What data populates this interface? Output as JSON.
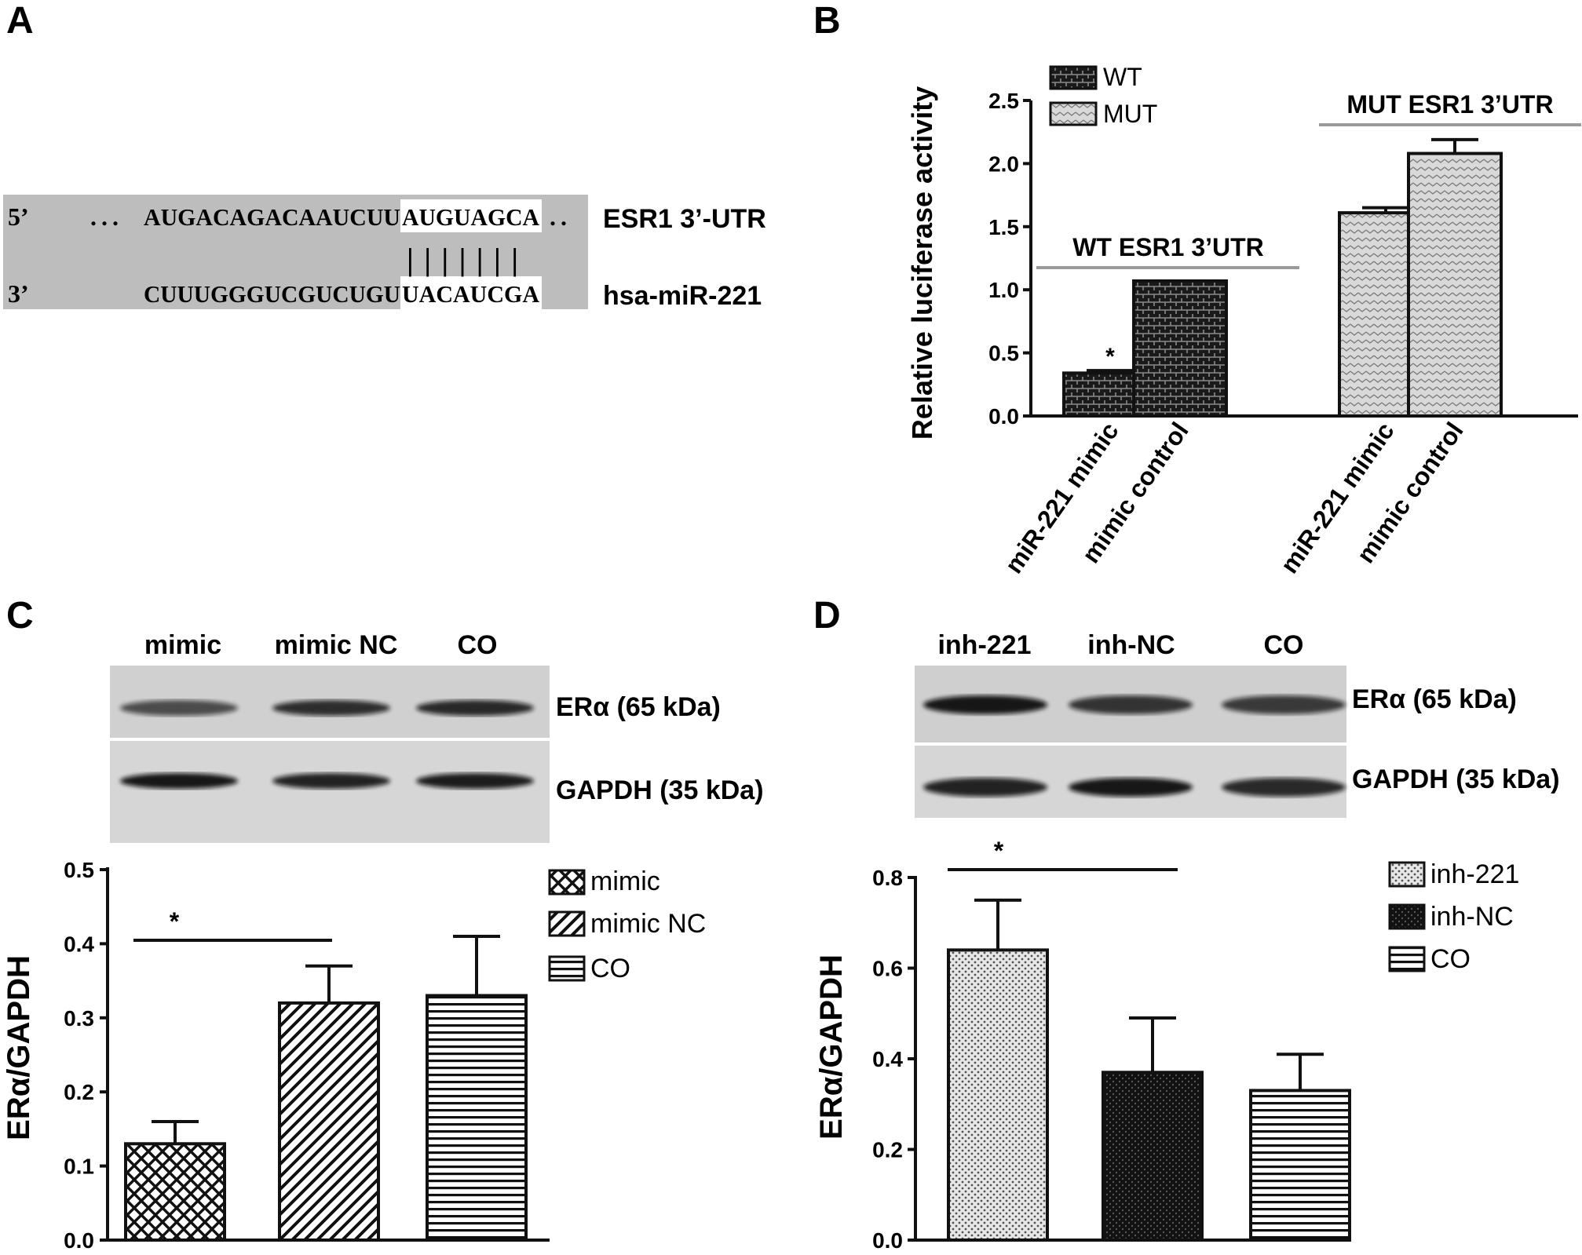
{
  "colors": {
    "ink": "#111111",
    "pale_fill": "#d8d8d8",
    "gray_box": "#bdbdbd",
    "rule": "#9a9a9a"
  },
  "panel_a": {
    "letter": "A",
    "row1_prime": "5’",
    "row1_dots": "...",
    "row1_seq": "AUGACAGACAAUCUU",
    "row1_site": "AUGUAGCA",
    "row1_tail": "..",
    "row1_label": "ESR1 3’-UTR",
    "pairing": "|||||||",
    "row2_prime": "3’",
    "row2_seq": "CUUUGGGUCGUCUGU",
    "row2_site": "UACAUCGA",
    "row2_label": "hsa-miR-221"
  },
  "chart_data": [
    {
      "panel": "B",
      "type": "bar",
      "ylabel": "Relative luciferase activity",
      "ylim": [
        0,
        2.5
      ],
      "yticks": [
        "0.0",
        "0.5",
        "1.0",
        "1.5",
        "2.0",
        "2.5"
      ],
      "categories": [
        "miR-221 mimic",
        "mimic control",
        "miR-221 mimic",
        "mimic control"
      ],
      "groups": [
        "WT ESR1 3’UTR",
        "MUT ESR1 3’UTR"
      ],
      "legend": [
        "WT",
        "MUT"
      ],
      "legend_position": "top-left",
      "values": [
        0.34,
        1.07,
        1.61,
        2.08
      ],
      "errors": [
        0.02,
        0.0,
        0.04,
        0.11
      ],
      "fills": [
        "WT",
        "WT",
        "MUT",
        "MUT"
      ],
      "significance": "*"
    },
    {
      "panel": "C",
      "type": "bar",
      "ylabel": "ERα/GAPDH",
      "ylim": [
        0,
        0.5
      ],
      "yticks": [
        "0.0",
        "0.1",
        "0.2",
        "0.3",
        "0.4",
        "0.5"
      ],
      "categories": [
        "mimic",
        "mimic NC",
        "CO"
      ],
      "legend": [
        "mimic",
        "mimic NC",
        "CO"
      ],
      "legend_position": "top-right",
      "values": [
        0.13,
        0.32,
        0.33
      ],
      "errors": [
        0.03,
        0.05,
        0.08
      ],
      "significance": "*",
      "blot": {
        "lanes": [
          "mimic",
          "mimic NC",
          "CO"
        ],
        "rows": [
          "ERα (65 kDa)",
          "GAPDH (35 kDa)"
        ],
        "band_levels": [
          [
            0.55,
            0.8,
            0.85
          ],
          [
            1.0,
            0.9,
            0.95
          ]
        ]
      }
    },
    {
      "panel": "D",
      "type": "bar",
      "ylabel": "ERα/GAPDH",
      "ylim": [
        0,
        0.8
      ],
      "yticks": [
        "0.0",
        "0.2",
        "0.4",
        "0.6",
        "0.8"
      ],
      "categories": [
        "inh-221",
        "inh-NC",
        "CO"
      ],
      "legend": [
        "inh-221",
        "inh-NC",
        "CO"
      ],
      "legend_position": "top-right",
      "values": [
        0.64,
        0.37,
        0.33
      ],
      "errors": [
        0.11,
        0.12,
        0.08
      ],
      "significance": "*",
      "blot": {
        "lanes": [
          "inh-221",
          "inh-NC",
          "CO"
        ],
        "rows": [
          "ERα (65 kDa)",
          "GAPDH (35 kDa)"
        ],
        "band_levels": [
          [
            1.0,
            0.75,
            0.7
          ],
          [
            0.9,
            1.0,
            0.85
          ]
        ]
      }
    }
  ]
}
